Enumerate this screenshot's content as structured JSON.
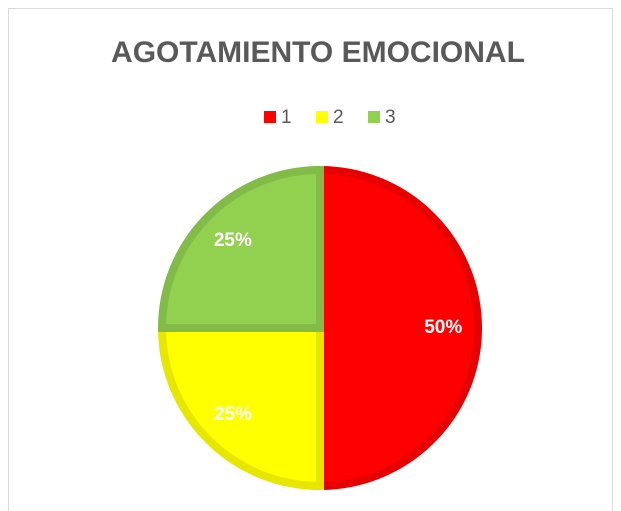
{
  "chart_data": {
    "type": "pie",
    "title": "AGOTAMIENTO EMOCIONAL",
    "categories": [
      "1",
      "2",
      "3"
    ],
    "values": [
      50,
      25,
      25
    ],
    "value_labels": [
      "50%",
      "25%",
      "25%"
    ],
    "colors": [
      "#ff0000",
      "#ffff00",
      "#92d050"
    ],
    "legend": "top"
  }
}
